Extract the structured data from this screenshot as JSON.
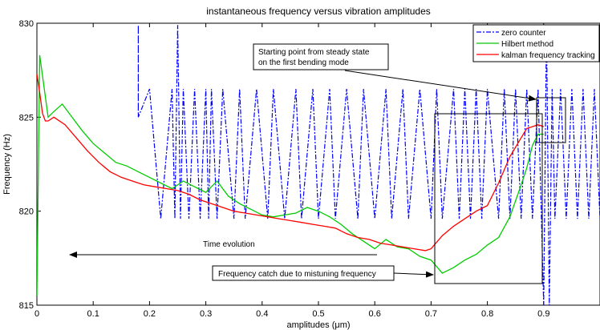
{
  "chart_data": {
    "type": "line",
    "title": "instantaneous frequency versus vibration amplitudes",
    "xlabel": "amplitudes (μm)",
    "ylabel": "Frequency (Hz)",
    "xlim": [
      0,
      1.0
    ],
    "ylim": [
      815,
      830
    ],
    "xticks": [
      "0",
      "0.1",
      "0.2",
      "0.3",
      "0.4",
      "0.5",
      "0.6",
      "0.7",
      "0.8",
      "0.9"
    ],
    "yticks": [
      "815",
      "820",
      "825",
      "830"
    ],
    "grid": false,
    "legend_position": "top-right",
    "series": [
      {
        "name": "zero counter",
        "color": "#0000ff",
        "style": "dash-dot",
        "x": [
          0.18,
          0.18,
          0.18,
          0.2,
          0.22,
          0.24,
          0.245,
          0.25,
          0.255,
          0.26,
          0.27,
          0.28,
          0.29,
          0.3,
          0.305,
          0.31,
          0.32,
          0.33,
          0.35,
          0.36,
          0.37,
          0.39,
          0.41,
          0.42,
          0.44,
          0.46,
          0.47,
          0.49,
          0.5,
          0.52,
          0.53,
          0.55,
          0.57,
          0.58,
          0.6,
          0.62,
          0.63,
          0.65,
          0.66,
          0.68,
          0.7,
          0.71,
          0.72,
          0.74,
          0.75,
          0.76,
          0.77,
          0.78,
          0.79,
          0.8,
          0.82,
          0.83,
          0.84,
          0.85,
          0.86,
          0.87,
          0.88,
          0.89,
          0.9,
          0.905,
          0.91,
          0.915,
          0.92,
          0.93,
          0.94,
          0.95,
          0.96,
          0.97,
          0.98,
          0.99,
          1.0
        ],
        "y": [
          825,
          829.9,
          825,
          826.5,
          819.6,
          826.5,
          819.6,
          829.9,
          819.6,
          826.5,
          819.6,
          826.5,
          819.6,
          826.5,
          819.6,
          826.5,
          819.6,
          826.5,
          819.6,
          826.5,
          819.6,
          826.5,
          819.6,
          826.5,
          819.6,
          826.5,
          819.6,
          826.5,
          819.6,
          826.5,
          819.6,
          826.5,
          819.6,
          826.5,
          819.6,
          826.5,
          819.6,
          826.5,
          819.6,
          826.5,
          819.6,
          826.5,
          819.6,
          826.5,
          819.6,
          826.5,
          819.6,
          826.5,
          819.6,
          826.5,
          819.6,
          826.5,
          819.6,
          826.5,
          819.6,
          826.5,
          819.6,
          826.5,
          815,
          829.9,
          815,
          826.5,
          819.6,
          826.5,
          819.6,
          826.5,
          819.6,
          826.5,
          819.6,
          826.5,
          819.6
        ]
      },
      {
        "name": "Hilbert method",
        "color": "#00cc00",
        "style": "solid",
        "x": [
          0,
          0.005,
          0.01,
          0.02,
          0.03,
          0.045,
          0.06,
          0.08,
          0.1,
          0.12,
          0.14,
          0.16,
          0.18,
          0.2,
          0.22,
          0.24,
          0.26,
          0.28,
          0.3,
          0.32,
          0.34,
          0.36,
          0.38,
          0.4,
          0.42,
          0.44,
          0.46,
          0.48,
          0.5,
          0.52,
          0.54,
          0.56,
          0.58,
          0.6,
          0.62,
          0.64,
          0.66,
          0.68,
          0.7,
          0.72,
          0.74,
          0.76,
          0.78,
          0.8,
          0.82,
          0.84,
          0.86,
          0.87,
          0.88,
          0.89,
          0.9
        ],
        "y": [
          815.5,
          828.3,
          827.2,
          825,
          825.3,
          825.7,
          825.1,
          824.3,
          823.6,
          823.1,
          822.6,
          822.4,
          822.1,
          821.8,
          821.5,
          821.2,
          821.6,
          821.3,
          821,
          821.6,
          820.8,
          820.4,
          820.1,
          819.8,
          819.7,
          819.8,
          819.9,
          820.2,
          820,
          819.7,
          819.3,
          818.8,
          818.4,
          818,
          818.5,
          818.1,
          818,
          817.6,
          817.4,
          816.7,
          817,
          817.4,
          817.7,
          818.2,
          818.6,
          819.7,
          821.4,
          822.3,
          823.5,
          824.1,
          824.1
        ]
      },
      {
        "name": "kalman frequency tracking",
        "color": "#ff0000",
        "style": "solid",
        "x": [
          0,
          0.005,
          0.01,
          0.015,
          0.02,
          0.03,
          0.05,
          0.07,
          0.09,
          0.11,
          0.13,
          0.15,
          0.17,
          0.19,
          0.21,
          0.23,
          0.25,
          0.27,
          0.29,
          0.31,
          0.33,
          0.35,
          0.37,
          0.39,
          0.41,
          0.43,
          0.45,
          0.47,
          0.49,
          0.51,
          0.53,
          0.55,
          0.57,
          0.59,
          0.61,
          0.63,
          0.65,
          0.67,
          0.69,
          0.7,
          0.72,
          0.74,
          0.76,
          0.78,
          0.8,
          0.82,
          0.84,
          0.86,
          0.87,
          0.88,
          0.89,
          0.9
        ],
        "y": [
          827.3,
          826.3,
          825.2,
          824.8,
          824.8,
          825,
          824.6,
          823.9,
          823.2,
          822.6,
          822.1,
          821.8,
          821.6,
          821.4,
          821.3,
          821.2,
          821.1,
          820.9,
          820.6,
          820.4,
          820.2,
          820,
          819.9,
          819.8,
          819.7,
          819.6,
          819.5,
          819.4,
          819.3,
          819.2,
          819.1,
          818.8,
          818.6,
          818.5,
          818.3,
          818.2,
          818.1,
          818,
          817.9,
          818,
          818.7,
          819.2,
          819.6,
          820,
          820.3,
          821.5,
          822.9,
          823.9,
          824.4,
          824.5,
          824.6,
          824.5
        ]
      }
    ],
    "annotations": [
      {
        "lines": [
          "Starting point from steady state",
          "on the first bending mode"
        ]
      },
      {
        "lines": [
          "Frequency catch due to mistuning frequency"
        ]
      },
      {
        "lines": [
          "Time evolution"
        ]
      }
    ]
  }
}
